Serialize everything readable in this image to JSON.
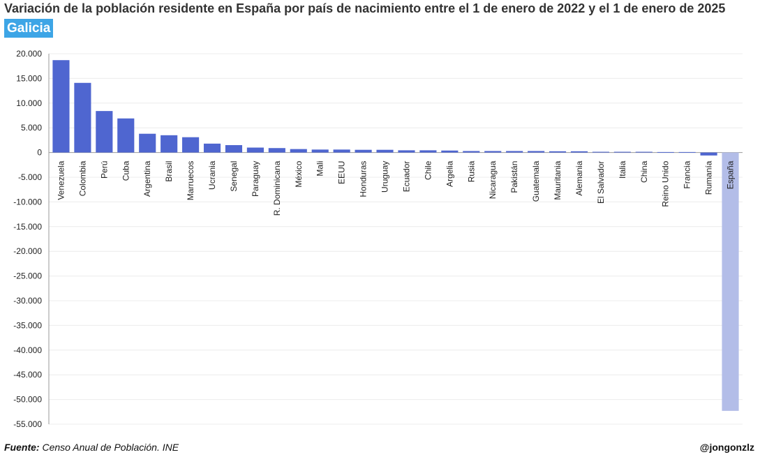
{
  "title": "Variación de la población residente en España por país de nacimiento entre el 1 de enero de 2022 y el 1 de enero de 2025",
  "region_badge": "Galicia",
  "footer": {
    "source_label": "Fuente:",
    "source_text": "Censo Anual de Población. INE",
    "author": "@jongonzlz"
  },
  "colors": {
    "bar": "#4f66d0",
    "bar_highlight": "#b3bde8",
    "badge": "#3da5e6"
  },
  "chart_data": {
    "type": "bar",
    "title": "Variación de la población residente en España por país de nacimiento entre el 1 de enero de 2022 y el 1 de enero de 2025",
    "ylim": [
      -55000,
      20000
    ],
    "ytick_step": 5000,
    "yticks": [
      "20.000",
      "15.000",
      "10.000",
      "5.000",
      "0",
      "-5.000",
      "-10.000",
      "-15.000",
      "-20.000",
      "-25.000",
      "-30.000",
      "-35.000",
      "-40.000",
      "-45.000",
      "-50.000",
      "-55.000"
    ],
    "grid": true,
    "categories": [
      "Venezuela",
      "Colombia",
      "Perú",
      "Cuba",
      "Argentina",
      "Brasil",
      "Marruecos",
      "Ucrania",
      "Senegal",
      "Paraguay",
      "R. Dominicana",
      "México",
      "Mali",
      "EEUU",
      "Honduras",
      "Uruguay",
      "Ecuador",
      "Chile",
      "Argelia",
      "Rusia",
      "Nicaragua",
      "Pakistán",
      "Guatemala",
      "Mauritania",
      "Alemania",
      "El Salvador",
      "Italia",
      "China",
      "Reino Unido",
      "Francia",
      "Rumanía",
      "España"
    ],
    "values": [
      18700,
      14100,
      8400,
      6900,
      3800,
      3500,
      3100,
      1800,
      1500,
      1000,
      900,
      700,
      600,
      600,
      550,
      550,
      450,
      450,
      400,
      300,
      300,
      300,
      300,
      250,
      250,
      150,
      150,
      150,
      100,
      100,
      -600,
      -52300
    ],
    "highlight": [
      "España"
    ]
  }
}
